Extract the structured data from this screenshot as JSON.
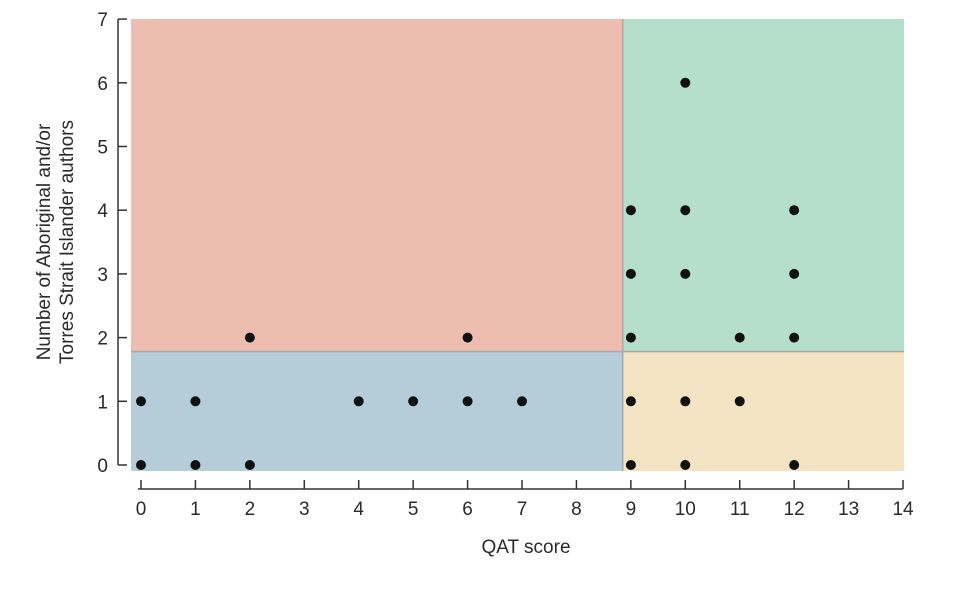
{
  "chart_data": {
    "type": "scatter",
    "title": "",
    "xlabel": "QAT score",
    "ylabel_lines": [
      "Number of Aboriginal and/or",
      "Torres Strait Islander authors"
    ],
    "xlim": [
      0,
      14
    ],
    "ylim": [
      0,
      7
    ],
    "x_ticks": [
      0,
      1,
      2,
      3,
      4,
      5,
      6,
      7,
      8,
      9,
      10,
      11,
      12,
      13,
      14
    ],
    "y_ticks": [
      0,
      1,
      2,
      3,
      4,
      5,
      6,
      7
    ],
    "grid": false,
    "regions": [
      {
        "name": "low-qat-high-authors",
        "x_range": [
          0,
          8.85
        ],
        "y_range": [
          1.78,
          7
        ],
        "color": "#edbdb0"
      },
      {
        "name": "low-qat-low-authors",
        "x_range": [
          0,
          8.85
        ],
        "y_range": [
          0,
          1.78
        ],
        "color": "#b5cdd8"
      },
      {
        "name": "high-qat-high-authors",
        "x_range": [
          8.85,
          14
        ],
        "y_range": [
          1.78,
          7
        ],
        "color": "#b5dfca"
      },
      {
        "name": "high-qat-low-authors",
        "x_range": [
          8.85,
          14
        ],
        "y_range": [
          0,
          1.78
        ],
        "color": "#f4e4c3"
      }
    ],
    "points": [
      {
        "x": 0,
        "y": 0
      },
      {
        "x": 0,
        "y": 1
      },
      {
        "x": 1,
        "y": 0
      },
      {
        "x": 1,
        "y": 1
      },
      {
        "x": 2,
        "y": 0
      },
      {
        "x": 2,
        "y": 2
      },
      {
        "x": 4,
        "y": 1
      },
      {
        "x": 5,
        "y": 1
      },
      {
        "x": 6,
        "y": 1
      },
      {
        "x": 6,
        "y": 2
      },
      {
        "x": 7,
        "y": 1
      },
      {
        "x": 9,
        "y": 0
      },
      {
        "x": 9,
        "y": 1
      },
      {
        "x": 9,
        "y": 2
      },
      {
        "x": 9,
        "y": 3
      },
      {
        "x": 9,
        "y": 4
      },
      {
        "x": 10,
        "y": 0
      },
      {
        "x": 10,
        "y": 1
      },
      {
        "x": 10,
        "y": 3
      },
      {
        "x": 10,
        "y": 4
      },
      {
        "x": 10,
        "y": 6
      },
      {
        "x": 11,
        "y": 1
      },
      {
        "x": 11,
        "y": 2
      },
      {
        "x": 12,
        "y": 0
      },
      {
        "x": 12,
        "y": 2
      },
      {
        "x": 12,
        "y": 3
      },
      {
        "x": 12,
        "y": 4
      }
    ],
    "point_color": "#111111",
    "axis_color": "#333333"
  }
}
